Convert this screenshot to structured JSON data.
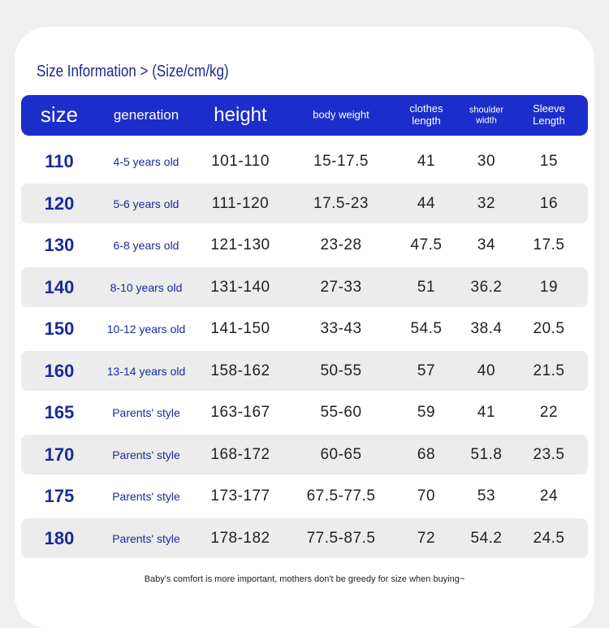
{
  "header": {
    "title": "Size Information > (Size/cm/kg)"
  },
  "table": {
    "columns": [
      [
        "size"
      ],
      [
        "generation"
      ],
      [
        "height"
      ],
      [
        "body weight"
      ],
      [
        "clothes",
        "length"
      ],
      [
        "shoulder",
        "width"
      ],
      [
        "Sleeve",
        "Length"
      ]
    ],
    "rows": [
      [
        "110",
        "4-5 years old",
        "101-110",
        "15-17.5",
        "41",
        "30",
        "15"
      ],
      [
        "120",
        "5-6 years old",
        "111-120",
        "17.5-23",
        "44",
        "32",
        "16"
      ],
      [
        "130",
        "6-8 years old",
        "121-130",
        "23-28",
        "47.5",
        "34",
        "17.5"
      ],
      [
        "140",
        "8-10 years old",
        "131-140",
        "27-33",
        "51",
        "36.2",
        "19"
      ],
      [
        "150",
        "10-12 years old",
        "141-150",
        "33-43",
        "54.5",
        "38.4",
        "20.5"
      ],
      [
        "160",
        "13-14 years old",
        "158-162",
        "50-55",
        "57",
        "40",
        "21.5"
      ],
      [
        "165",
        "Parents' style",
        "163-167",
        "55-60",
        "59",
        "41",
        "22"
      ],
      [
        "170",
        "Parents' style",
        "168-172",
        "60-65",
        "68",
        "51.8",
        "23.5"
      ],
      [
        "175",
        "Parents' style",
        "173-177",
        "67.5-77.5",
        "70",
        "53",
        "24"
      ],
      [
        "180",
        "Parents' style",
        "178-182",
        "77.5-87.5",
        "72",
        "54.2",
        "24.5"
      ]
    ]
  },
  "footer": {
    "note": "Baby's comfort is more important, mothers don't be greedy for size when buying~"
  }
}
